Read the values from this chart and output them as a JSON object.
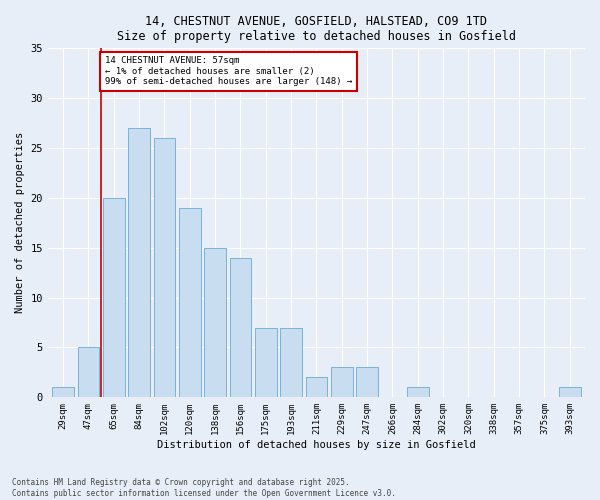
{
  "title1": "14, CHESTNUT AVENUE, GOSFIELD, HALSTEAD, CO9 1TD",
  "title2": "Size of property relative to detached houses in Gosfield",
  "xlabel": "Distribution of detached houses by size in Gosfield",
  "ylabel": "Number of detached properties",
  "categories": [
    "29sqm",
    "47sqm",
    "65sqm",
    "84sqm",
    "102sqm",
    "120sqm",
    "138sqm",
    "156sqm",
    "175sqm",
    "193sqm",
    "211sqm",
    "229sqm",
    "247sqm",
    "266sqm",
    "284sqm",
    "302sqm",
    "320sqm",
    "338sqm",
    "357sqm",
    "375sqm",
    "393sqm"
  ],
  "values": [
    1,
    5,
    20,
    27,
    26,
    19,
    15,
    14,
    7,
    7,
    2,
    3,
    3,
    0,
    1,
    0,
    0,
    0,
    0,
    0,
    1
  ],
  "bar_color": "#c9ddf0",
  "bar_edge_color": "#6aaad4",
  "ref_line_x": 1.5,
  "ref_line_color": "#cc0000",
  "annotation_title": "14 CHESTNUT AVENUE: 57sqm",
  "annotation_line1": "← 1% of detached houses are smaller (2)",
  "annotation_line2": "99% of semi-detached houses are larger (148) →",
  "annotation_box_color": "#cc0000",
  "annotation_bg": "#ffffff",
  "ylim": [
    0,
    35
  ],
  "yticks": [
    0,
    5,
    10,
    15,
    20,
    25,
    30,
    35
  ],
  "footer1": "Contains HM Land Registry data © Crown copyright and database right 2025.",
  "footer2": "Contains public sector information licensed under the Open Government Licence v3.0.",
  "bg_color": "#e8eef8",
  "plot_bg": "#e8eef8"
}
